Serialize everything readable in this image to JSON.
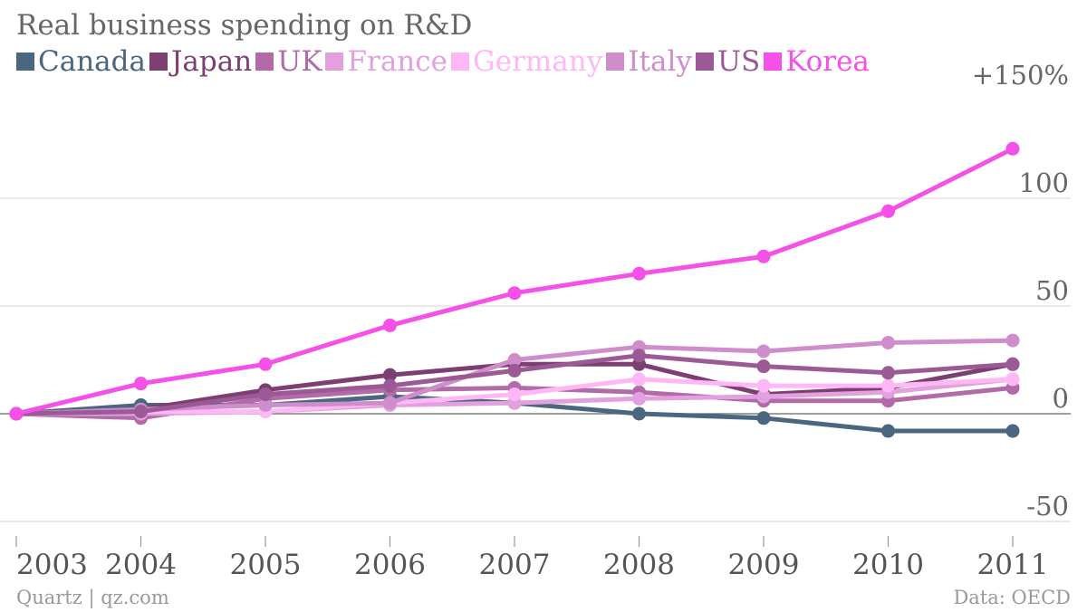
{
  "chart_data": {
    "type": "line",
    "title": "Real business spending on R&D",
    "x": [
      "2003",
      "2004",
      "2005",
      "2006",
      "2007",
      "2008",
      "2009",
      "2010",
      "2011"
    ],
    "ylim": [
      -50,
      150
    ],
    "yticks": [
      {
        "value": 150,
        "label": "+150%"
      },
      {
        "value": 100,
        "label": "100"
      },
      {
        "value": 50,
        "label": "50"
      },
      {
        "value": 0,
        "label": "0"
      },
      {
        "value": -50,
        "label": "-50"
      }
    ],
    "grid": true,
    "legend": "top-left",
    "series": [
      {
        "name": "Canada",
        "color": "#4a6680",
        "values": [
          0,
          4,
          4,
          8,
          5,
          0,
          -2,
          -8,
          -8
        ]
      },
      {
        "name": "Japan",
        "color": "#7d3f72",
        "values": [
          0,
          2,
          11,
          18,
          23,
          23,
          9,
          12,
          23
        ]
      },
      {
        "name": "UK",
        "color": "#b26aa8",
        "values": [
          0,
          -2,
          7,
          11,
          12,
          10,
          6,
          6,
          12
        ]
      },
      {
        "name": "France",
        "color": "#e3a0de",
        "values": [
          0,
          0,
          1,
          4,
          5,
          7,
          8,
          10,
          16
        ]
      },
      {
        "name": "Germany",
        "color": "#ffb8f5",
        "values": [
          0,
          1,
          1,
          5,
          9,
          16,
          13,
          13,
          16
        ]
      },
      {
        "name": "Italy",
        "color": "#cf8dcc",
        "values": [
          0,
          2,
          4,
          5,
          25,
          31,
          29,
          33,
          34
        ]
      },
      {
        "name": "US",
        "color": "#9b5a96",
        "values": [
          0,
          1,
          9,
          13,
          20,
          27,
          22,
          19,
          23
        ]
      },
      {
        "name": "Korea",
        "color": "#f550e8",
        "values": [
          0,
          14,
          23,
          41,
          56,
          65,
          73,
          94,
          123
        ]
      }
    ]
  },
  "footer": {
    "credit": "Quartz | qz.com",
    "source": "Data: OECD"
  }
}
